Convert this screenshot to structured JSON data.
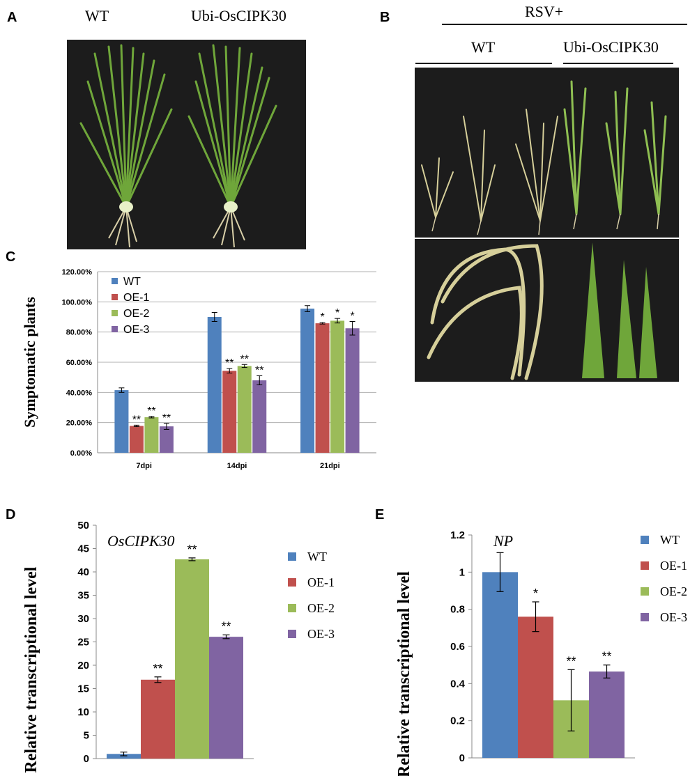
{
  "panel_a": {
    "letter": "A",
    "labels": [
      "WT",
      "Ubi-OsCIPK30"
    ]
  },
  "panel_b": {
    "letter": "B",
    "top_label": "RSV+",
    "labels": [
      "WT",
      "Ubi-OsCIPK30"
    ]
  },
  "colors": {
    "WT": "#4f81bd",
    "OE-1": "#c0504d",
    "OE-2": "#9bbb59",
    "OE-3": "#8064a2",
    "grid": "#b0b0b0",
    "photo_bg": "#1c1c1c",
    "leaf": "#6fa63a",
    "leaf_dry": "#d6cf9a"
  },
  "chart_data": [
    {
      "panel": "C",
      "type": "bar",
      "ylabel": "Symptomatic plants",
      "xlabel": "",
      "categories": [
        "7dpi",
        "14dpi",
        "21dpi"
      ],
      "yticks": [
        "0.00%",
        "20.00%",
        "40.00%",
        "60.00%",
        "80.00%",
        "100.00%",
        "120.00%"
      ],
      "ylim": [
        0,
        120
      ],
      "grid": true,
      "legend": "top-left",
      "series": [
        {
          "name": "WT",
          "values": [
            41.5,
            90,
            95.5
          ],
          "errors": [
            1.5,
            3,
            2
          ],
          "marks": [
            "",
            "",
            ""
          ]
        },
        {
          "name": "OE-1",
          "values": [
            17.8,
            54.3,
            85.8
          ],
          "errors": [
            0.5,
            1.5,
            0.5
          ],
          "marks": [
            "**",
            "**",
            "*"
          ]
        },
        {
          "name": "OE-2",
          "values": [
            23.6,
            57.5,
            87.5
          ],
          "errors": [
            0.5,
            1,
            1.5
          ],
          "marks": [
            "**",
            "**",
            "*"
          ]
        },
        {
          "name": "OE-3",
          "values": [
            17.5,
            48,
            82.5
          ],
          "errors": [
            2,
            3,
            4.5
          ],
          "marks": [
            "**",
            "**",
            "*"
          ]
        }
      ]
    },
    {
      "panel": "D",
      "type": "bar",
      "ylabel": "Relative transcriptional level",
      "annotation": "OsCIPK30",
      "categories": [
        ""
      ],
      "yticks": [
        "0",
        "5",
        "10",
        "15",
        "20",
        "25",
        "30",
        "35",
        "40",
        "45",
        "50"
      ],
      "ylim": [
        0,
        50
      ],
      "grid": false,
      "legend": "right",
      "series": [
        {
          "name": "WT",
          "values": [
            1
          ],
          "errors": [
            0.4
          ],
          "marks": [
            ""
          ]
        },
        {
          "name": "OE-1",
          "values": [
            16.9
          ],
          "errors": [
            0.6
          ],
          "marks": [
            "**"
          ]
        },
        {
          "name": "OE-2",
          "values": [
            42.7
          ],
          "errors": [
            0.3
          ],
          "marks": [
            "**"
          ]
        },
        {
          "name": "OE-3",
          "values": [
            26.1
          ],
          "errors": [
            0.4
          ],
          "marks": [
            "**"
          ]
        }
      ]
    },
    {
      "panel": "E",
      "type": "bar",
      "ylabel": "Relative transcriptional level",
      "annotation": "NP",
      "categories": [
        ""
      ],
      "yticks": [
        "0",
        "0.2",
        "0.4",
        "0.6",
        "0.8",
        "1",
        "1.2"
      ],
      "ylim": [
        0,
        1.2
      ],
      "grid": false,
      "legend": "right",
      "series": [
        {
          "name": "WT",
          "values": [
            1
          ],
          "errors": [
            0.105
          ],
          "marks": [
            ""
          ]
        },
        {
          "name": "OE-1",
          "values": [
            0.76
          ],
          "errors": [
            0.08
          ],
          "marks": [
            "*"
          ]
        },
        {
          "name": "OE-2",
          "values": [
            0.31
          ],
          "errors": [
            0.165
          ],
          "marks": [
            "**"
          ]
        },
        {
          "name": "OE-3",
          "values": [
            0.465
          ],
          "errors": [
            0.035
          ],
          "marks": [
            "**"
          ]
        }
      ]
    }
  ]
}
